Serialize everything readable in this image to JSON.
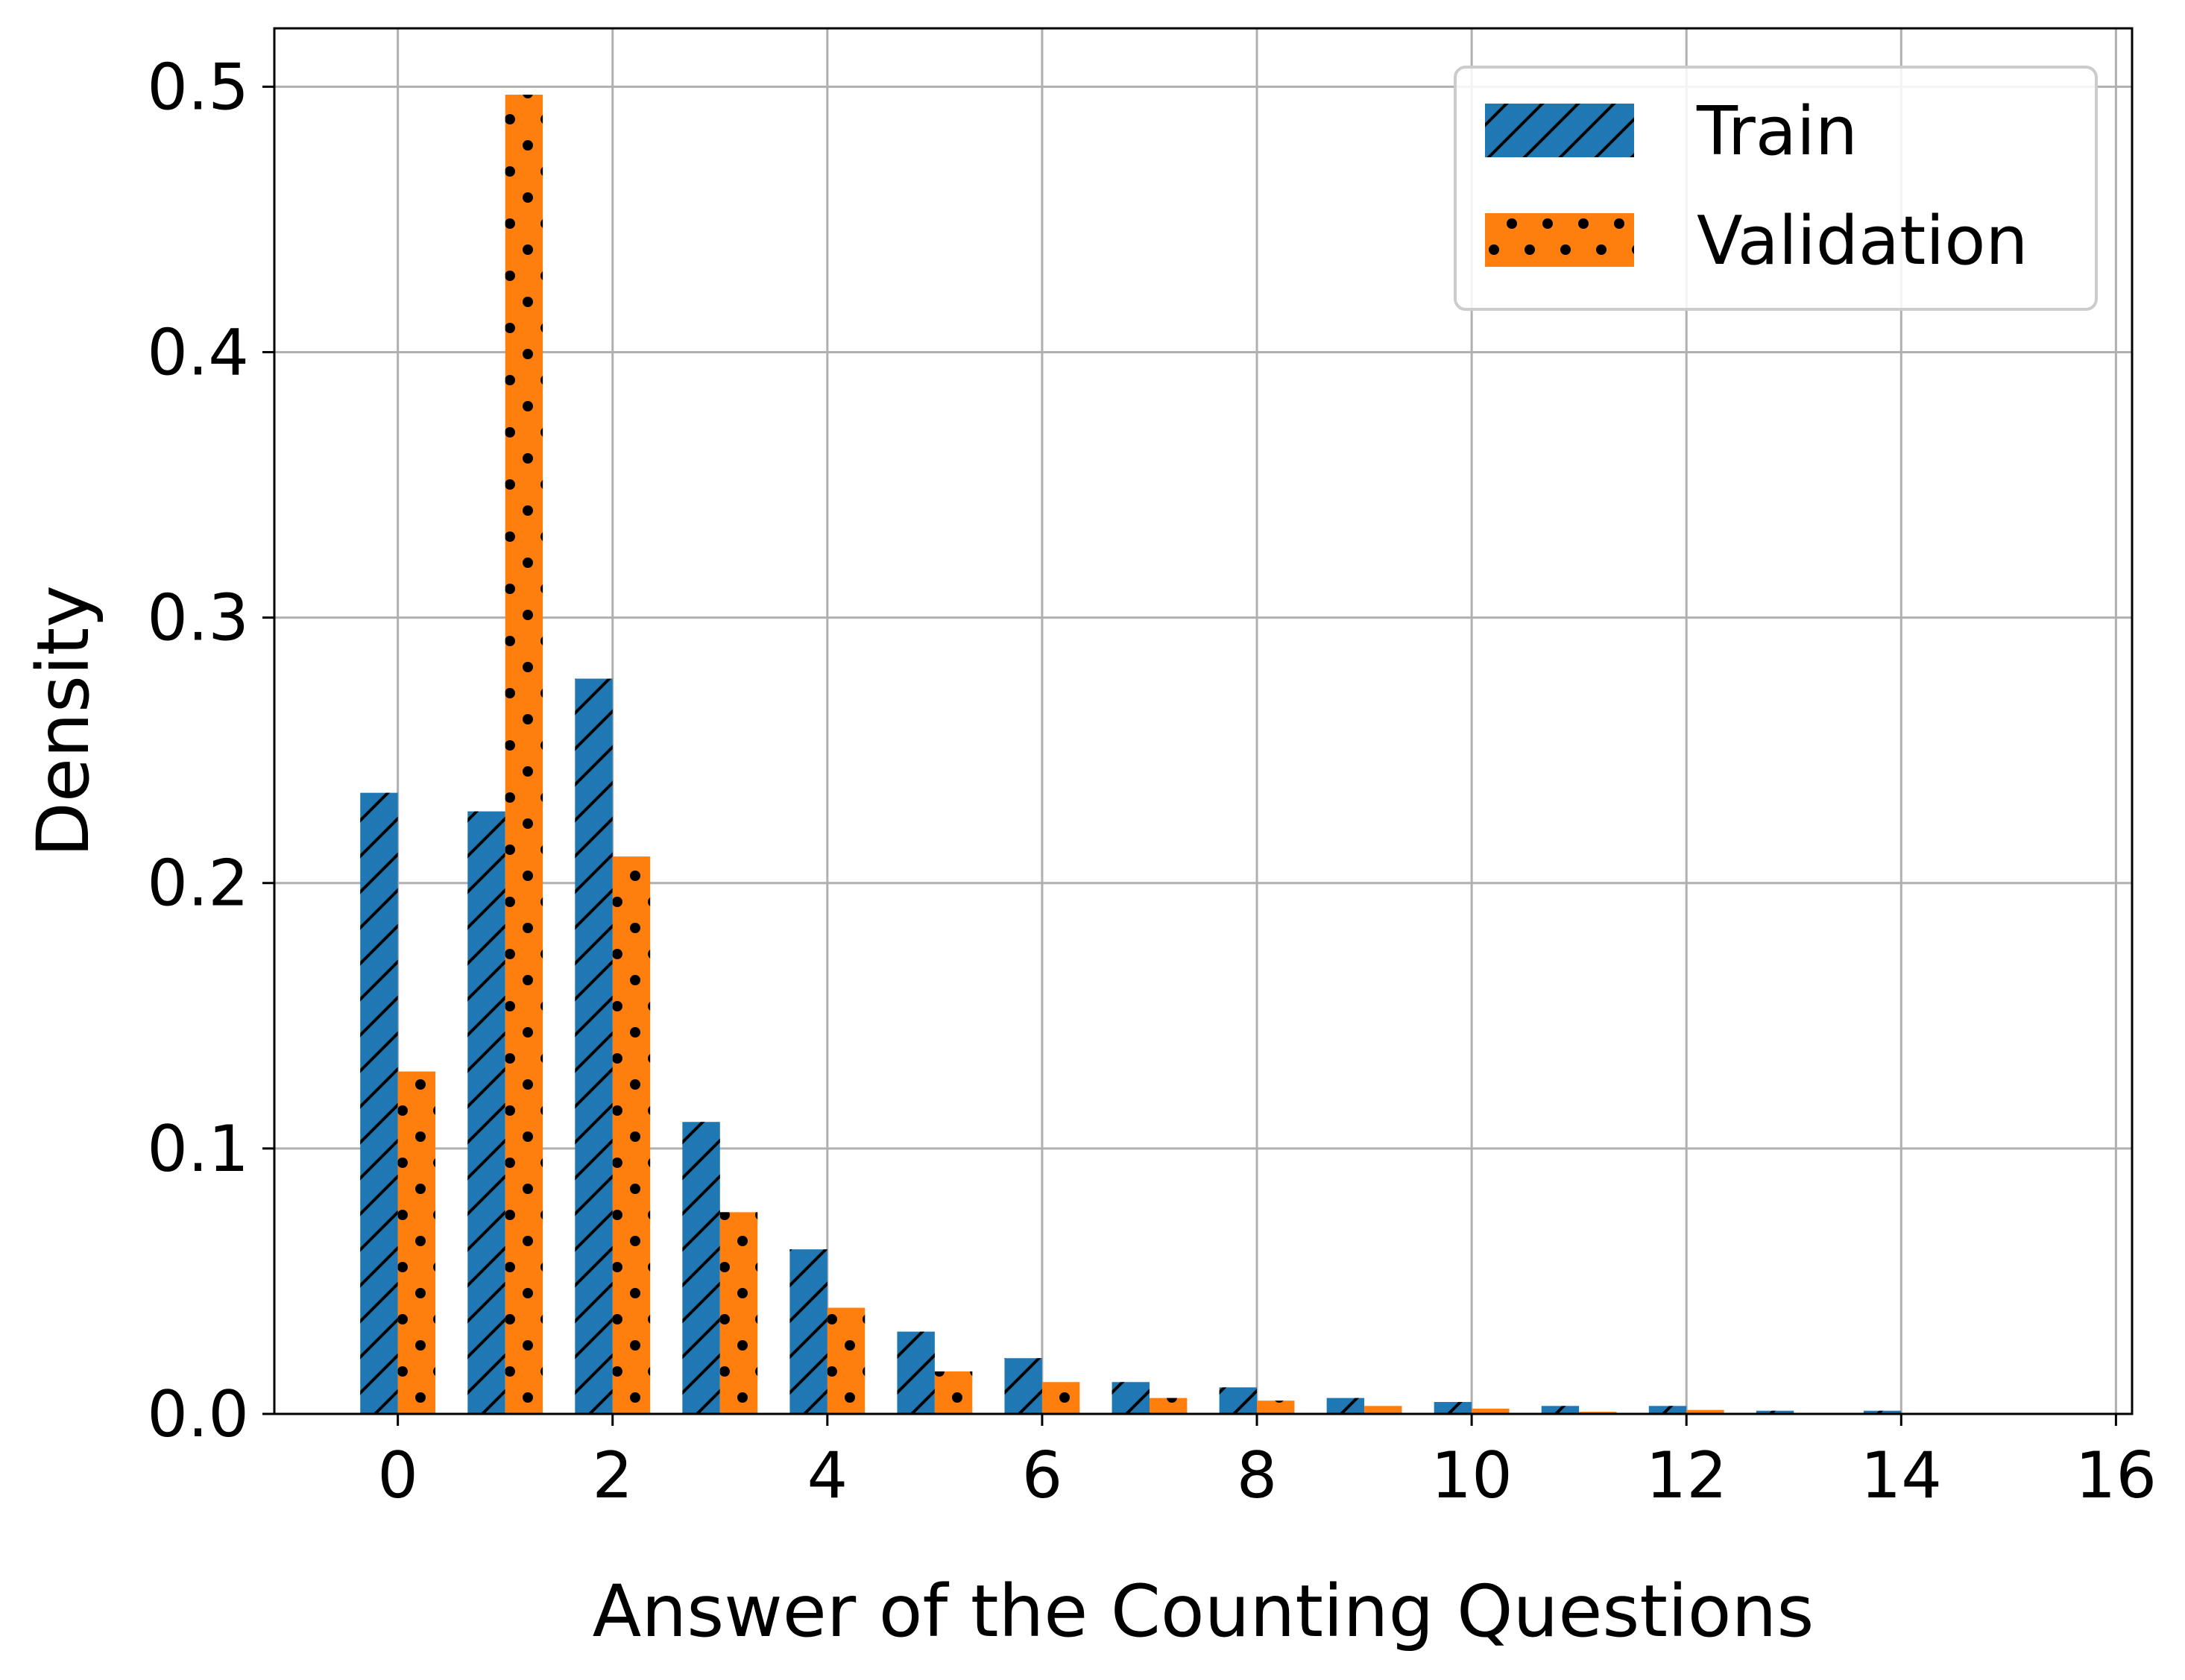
{
  "chart_data": {
    "type": "bar",
    "title": "",
    "xlabel": "Answer of the Counting Questions",
    "ylabel": "Density",
    "xlim": [
      -1.15,
      16.15
    ],
    "ylim": [
      0,
      0.522
    ],
    "xticks": [
      0,
      2,
      4,
      6,
      8,
      10,
      12,
      14,
      16
    ],
    "xtick_labels": [
      "0",
      "2",
      "4",
      "6",
      "8",
      "10",
      "12",
      "14",
      "16"
    ],
    "yticks": [
      0.0,
      0.1,
      0.2,
      0.3,
      0.4,
      0.5
    ],
    "ytick_labels": [
      "0.0",
      "0.1",
      "0.2",
      "0.3",
      "0.4",
      "0.5"
    ],
    "grid": true,
    "legend_position": "top-right",
    "categories": [
      0,
      1,
      2,
      3,
      4,
      5,
      6,
      7,
      8,
      9,
      10,
      11,
      12,
      13,
      14,
      15
    ],
    "series": [
      {
        "name": "Train",
        "color": "#1f77b4",
        "hatch": "diagonal",
        "values": [
          0.234,
          0.227,
          0.277,
          0.11,
          0.062,
          0.031,
          0.021,
          0.012,
          0.01,
          0.006,
          0.0045,
          0.003,
          0.003,
          0.0012,
          0.0012,
          0.0004
        ]
      },
      {
        "name": "Validation",
        "color": "#ff7f0e",
        "hatch": "dots",
        "values": [
          0.129,
          0.497,
          0.21,
          0.076,
          0.04,
          0.016,
          0.012,
          0.006,
          0.005,
          0.003,
          0.002,
          0.0008,
          0.0015,
          0.0003,
          0.0003,
          0.0001
        ]
      }
    ]
  }
}
